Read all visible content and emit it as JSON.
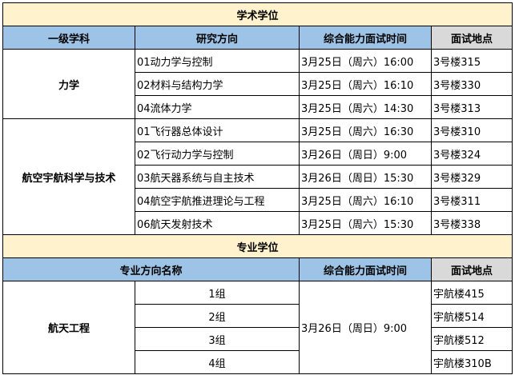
{
  "academic": {
    "title": "学术学位",
    "headers": [
      "一级学科",
      "研究方向",
      "综合能力面试时间",
      "面试地点"
    ],
    "groups": [
      {
        "subject": "力学",
        "rows": [
          [
            "01动力学与控制",
            "3月25日（周六）16:00",
            "3号楼315"
          ],
          [
            "02材料与结构力学",
            "3月25日（周六）16:10",
            "3号楼330"
          ],
          [
            "04流体力学",
            "3月25日（周六）14:30",
            "3号楼313"
          ]
        ]
      },
      {
        "subject": "航空宇航科学与技术",
        "rows": [
          [
            "01飞行器总体设计",
            "3月25日（周六）16:30",
            "3号楼310"
          ],
          [
            "02飞行动力学与控制",
            "3月26日（周日）9:00",
            "3号楼324"
          ],
          [
            "03航天器系统与自主技术",
            "3月26日（周日）15:30",
            "3号楼329"
          ],
          [
            "04航空宇航推进理论与工程",
            "3月25日（周六）16:10",
            "3号楼311"
          ],
          [
            "06航天发射技术",
            "3月25日（周六）15:30",
            "3号楼338"
          ]
        ]
      }
    ]
  },
  "professional": {
    "title": "专业学位",
    "headers": [
      "专业方向名称",
      "综合能力面试时间",
      "面试地点"
    ],
    "subject": "航天工程",
    "time": "3月26日（周日）9:00",
    "rows": [
      [
        "1组",
        "宇航楼415"
      ],
      [
        "2组",
        "宇航楼514"
      ],
      [
        "3组",
        "宇航楼512"
      ],
      [
        "4组",
        "宇航楼310B"
      ]
    ]
  },
  "colors": {
    "title_bg": "#FFF2CC",
    "header_blue": "#9DC3E6",
    "header_gray": "#D9D9D9"
  }
}
